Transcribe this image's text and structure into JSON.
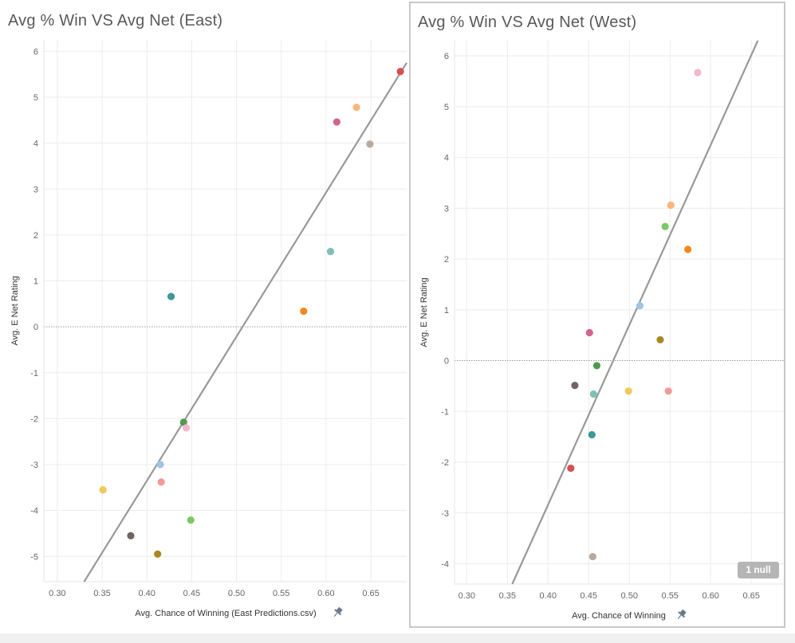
{
  "chart_data": [
    {
      "type": "scatter",
      "title": "Avg % Win VS Avg Net (East)",
      "xlabel": "Avg. Chance of Winning (East Predictions.csv)",
      "ylabel": "Avg. E Net Rating",
      "xlim": [
        0.285,
        0.69
      ],
      "ylim": [
        -5.55,
        6.25
      ],
      "xticks": [
        "0.30",
        "0.35",
        "0.40",
        "0.45",
        "0.50",
        "0.55",
        "0.60",
        "0.65"
      ],
      "yticks": [
        "6",
        "5",
        "4",
        "3",
        "2",
        "1",
        "0",
        "-1",
        "-2",
        "-3",
        "-4",
        "-5"
      ],
      "grid": true,
      "zero_line": true,
      "trend_line": [
        [
          0.33,
          -5.55
        ],
        [
          0.69,
          5.75
        ]
      ],
      "points": [
        {
          "x": 0.683,
          "y": 5.56,
          "color": "#d64f4f"
        },
        {
          "x": 0.634,
          "y": 4.78,
          "color": "#fbb77a"
        },
        {
          "x": 0.612,
          "y": 4.46,
          "color": "#d4648f"
        },
        {
          "x": 0.649,
          "y": 3.98,
          "color": "#b8a9a3"
        },
        {
          "x": 0.605,
          "y": 1.64,
          "color": "#7fbfb7"
        },
        {
          "x": 0.427,
          "y": 0.66,
          "color": "#3a9a96"
        },
        {
          "x": 0.575,
          "y": 0.34,
          "color": "#f0891f"
        },
        {
          "x": 0.441,
          "y": -2.08,
          "color": "#4f9a52"
        },
        {
          "x": 0.444,
          "y": -2.2,
          "color": "#f6b6cd"
        },
        {
          "x": 0.415,
          "y": -3.0,
          "color": "#9fc5e6"
        },
        {
          "x": 0.416,
          "y": -3.38,
          "color": "#f49999"
        },
        {
          "x": 0.351,
          "y": -3.55,
          "color": "#f0c95a"
        },
        {
          "x": 0.449,
          "y": -4.21,
          "color": "#7cc867"
        },
        {
          "x": 0.382,
          "y": -4.55,
          "color": "#706464"
        },
        {
          "x": 0.412,
          "y": -4.95,
          "color": "#a88a24"
        }
      ]
    },
    {
      "type": "scatter",
      "title": "Avg % Win VS Avg Net (West)",
      "xlabel": "Avg. Chance of Winning",
      "ylabel": "Avg. E Net Rating",
      "xlim": [
        0.285,
        0.69
      ],
      "ylim": [
        -4.4,
        6.3
      ],
      "xticks": [
        "0.30",
        "0.35",
        "0.40",
        "0.45",
        "0.50",
        "0.55",
        "0.60",
        "0.65"
      ],
      "yticks": [
        "6",
        "5",
        "4",
        "3",
        "2",
        "1",
        "0",
        "-1",
        "-2",
        "-3",
        "-4"
      ],
      "grid": true,
      "zero_line": true,
      "trend_line": [
        [
          0.356,
          -4.4
        ],
        [
          0.658,
          6.3
        ]
      ],
      "null_badge": "1 null",
      "points": [
        {
          "x": 0.584,
          "y": 5.67,
          "color": "#f6b6cd"
        },
        {
          "x": 0.551,
          "y": 3.06,
          "color": "#fbb77a"
        },
        {
          "x": 0.544,
          "y": 2.64,
          "color": "#7cc867"
        },
        {
          "x": 0.572,
          "y": 2.19,
          "color": "#f0891f"
        },
        {
          "x": 0.513,
          "y": 1.08,
          "color": "#9fc5e6"
        },
        {
          "x": 0.451,
          "y": 0.55,
          "color": "#d4648f"
        },
        {
          "x": 0.538,
          "y": 0.41,
          "color": "#a88a24"
        },
        {
          "x": 0.46,
          "y": -0.1,
          "color": "#4f9a52"
        },
        {
          "x": 0.433,
          "y": -0.49,
          "color": "#706464"
        },
        {
          "x": 0.456,
          "y": -0.66,
          "color": "#7fbfb7"
        },
        {
          "x": 0.499,
          "y": -0.6,
          "color": "#f0c95a"
        },
        {
          "x": 0.548,
          "y": -0.6,
          "color": "#f49999"
        },
        {
          "x": 0.454,
          "y": -1.46,
          "color": "#3a9a96"
        },
        {
          "x": 0.428,
          "y": -2.12,
          "color": "#d64f4f"
        },
        {
          "x": 0.455,
          "y": -3.86,
          "color": "#b8a9a3"
        }
      ]
    }
  ]
}
